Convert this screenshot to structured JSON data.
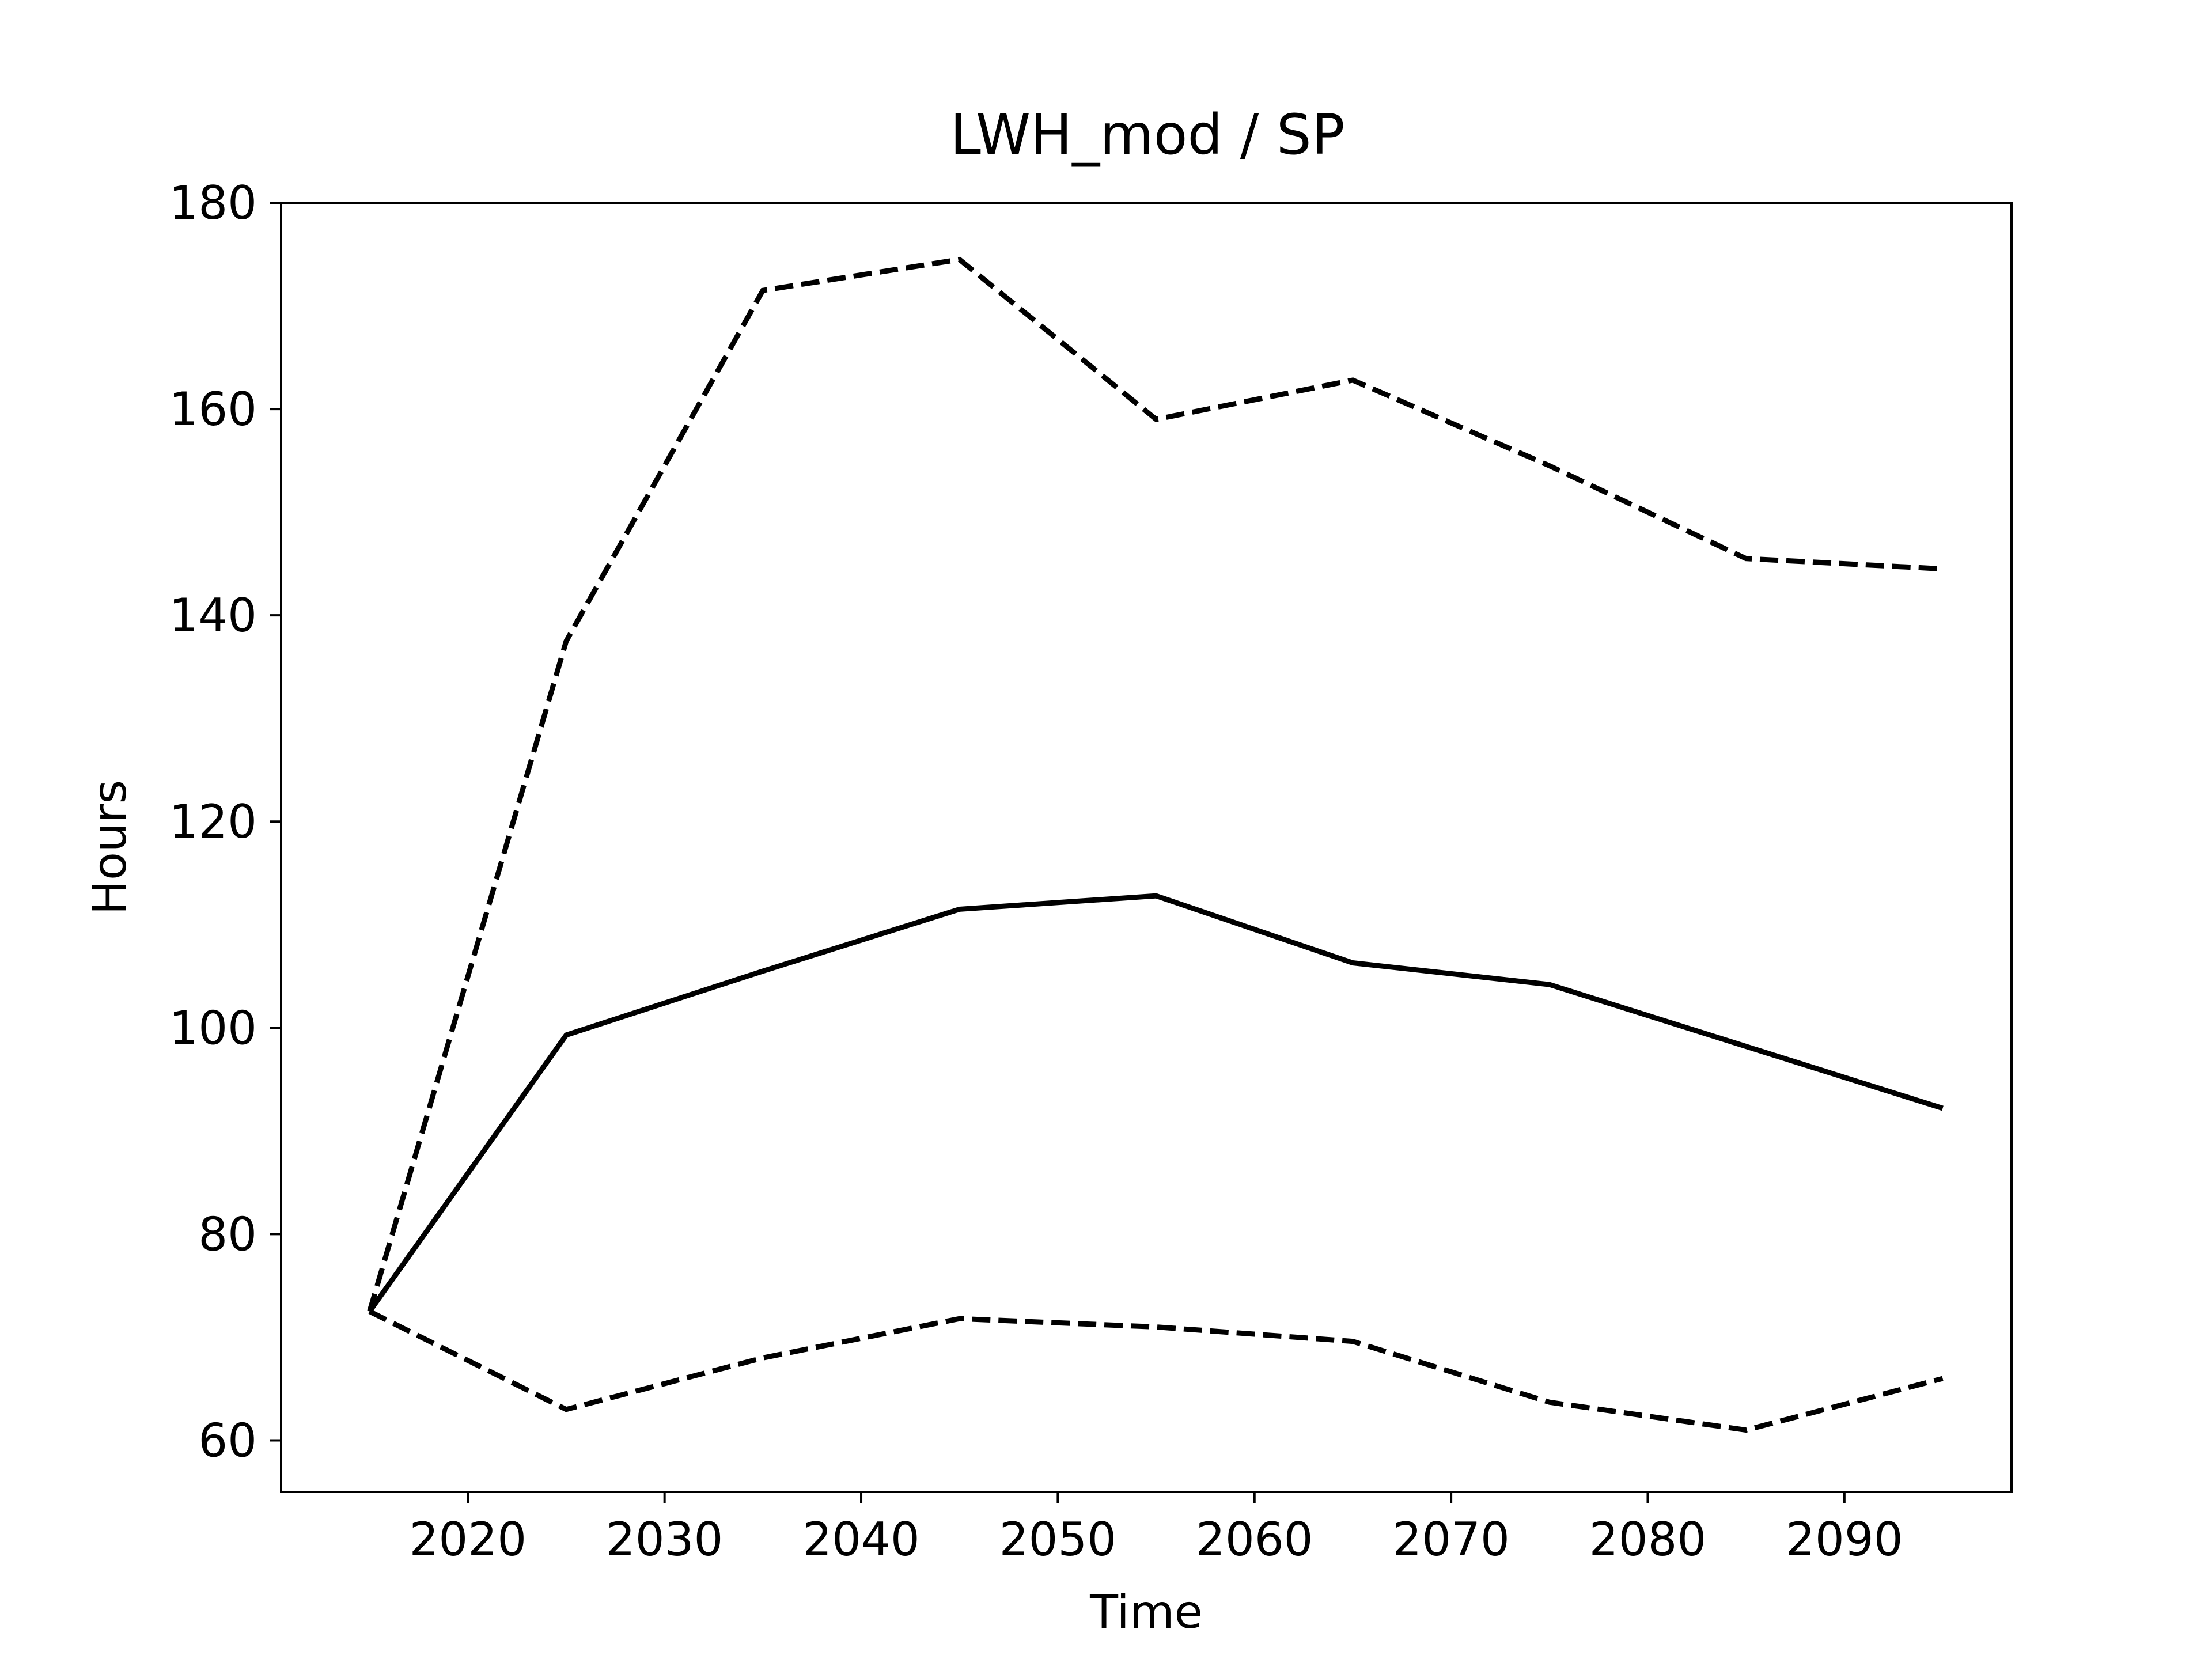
{
  "chart_data": {
    "type": "line",
    "title": "LWH_mod / SP",
    "xlabel": "Time",
    "ylabel": "Hours",
    "xlim": [
      2010.5,
      2098.5
    ],
    "ylim": [
      55,
      180
    ],
    "x_ticks": [
      2020,
      2030,
      2040,
      2050,
      2060,
      2070,
      2080,
      2090
    ],
    "y_ticks": [
      60,
      80,
      100,
      120,
      140,
      160,
      180
    ],
    "grid": false,
    "x": [
      2015,
      2025,
      2035,
      2045,
      2055,
      2065,
      2075,
      2085,
      2095
    ],
    "series": [
      {
        "style": "dashed",
        "color": "#000000",
        "values": [
          72.5,
          137.5,
          171.5,
          174.5,
          159.0,
          162.8,
          154.5,
          145.5,
          144.5
        ]
      },
      {
        "style": "solid",
        "color": "#000000",
        "values": [
          72.5,
          99.3,
          105.5,
          111.5,
          112.8,
          106.3,
          104.2,
          98.2,
          92.2
        ]
      },
      {
        "style": "dashed",
        "color": "#000000",
        "values": [
          72.5,
          63.0,
          68.0,
          71.8,
          71.0,
          69.6,
          63.7,
          61.0,
          66.0
        ]
      }
    ]
  }
}
